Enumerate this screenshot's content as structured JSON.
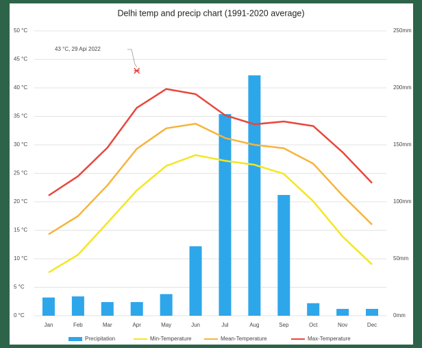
{
  "chart_data": {
    "type": "combo",
    "title": "Delhi temp and precip chart (1991-2020 average)",
    "categories": [
      "Jan",
      "Feb",
      "Mar",
      "Apr",
      "May",
      "Jun",
      "Jul",
      "Aug",
      "Sep",
      "Oct",
      "Nov",
      "Dec"
    ],
    "series": [
      {
        "name": "Precipitation",
        "type": "bar",
        "axis": "y2",
        "color": "#2ea6ea",
        "values": [
          16,
          17,
          12,
          12,
          19,
          61,
          177,
          211,
          106,
          11,
          6,
          6
        ]
      },
      {
        "name": "Min-Temperature",
        "type": "line",
        "color": "#f3e620",
        "values": [
          7.6,
          10.7,
          16.3,
          22,
          26.3,
          28.2,
          27.2,
          26.5,
          24.9,
          20.1,
          13.9,
          9
        ]
      },
      {
        "name": "Mean-Temperature",
        "type": "line",
        "color": "#f6b43c",
        "values": [
          14.3,
          17.5,
          22.9,
          29.3,
          32.9,
          33.7,
          31.2,
          30,
          29.4,
          26.7,
          21.1,
          16
        ]
      },
      {
        "name": "Max-Temperature",
        "type": "line",
        "color": "#e8463b",
        "values": [
          21.1,
          24.5,
          29.5,
          36.5,
          39.8,
          38.9,
          35.2,
          33.6,
          34.1,
          33.3,
          28.7,
          23.3
        ]
      }
    ],
    "ylim": [
      0,
      50
    ],
    "yticks": [
      {
        "value": 0,
        "label": "0 °C"
      },
      {
        "value": 5,
        "label": "5 °C"
      },
      {
        "value": 10,
        "label": "10 °C"
      },
      {
        "value": 15,
        "label": "15 °C"
      },
      {
        "value": 20,
        "label": "20 °C"
      },
      {
        "value": 25,
        "label": "25 °C"
      },
      {
        "value": 30,
        "label": "30 °C"
      },
      {
        "value": 35,
        "label": "35 °C"
      },
      {
        "value": 40,
        "label": "40 °C"
      },
      {
        "value": 45,
        "label": "45 °C"
      },
      {
        "value": 50,
        "label": "50 °C"
      }
    ],
    "y2lim": [
      0,
      250
    ],
    "y2ticks": [
      {
        "value": 0,
        "label": "0mm"
      },
      {
        "value": 50,
        "label": "50mm"
      },
      {
        "value": 100,
        "label": "100mm"
      },
      {
        "value": 150,
        "label": "150mm"
      },
      {
        "value": 200,
        "label": "200mm"
      },
      {
        "value": 250,
        "label": "250mm"
      }
    ],
    "grid": true,
    "legend": "bottom",
    "annotation": {
      "text": "43 °C, 29 Api 2022",
      "category": "Apr",
      "value": 43,
      "color": "#e8463b"
    }
  }
}
